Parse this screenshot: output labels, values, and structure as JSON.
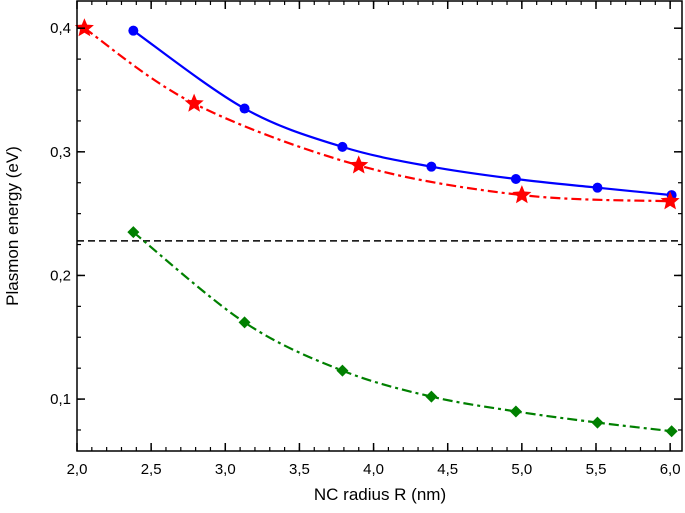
{
  "chart_data": {
    "type": "line",
    "title": "",
    "xlabel": "NC radius R (nm)",
    "ylabel": "Plasmon energy (eV)",
    "xlim": [
      2.0,
      6.08
    ],
    "ylim": [
      0.058,
      0.422
    ],
    "xticks": [
      "2,0",
      "2,5",
      "3,0",
      "3,5",
      "4,0",
      "4,5",
      "5,0",
      "5,5",
      "6,0"
    ],
    "xtick_values": [
      2.0,
      2.5,
      3.0,
      3.5,
      4.0,
      4.5,
      5.0,
      5.5,
      6.0
    ],
    "yticks": [
      "0,1",
      "0,2",
      "0,3",
      "0,4"
    ],
    "ytick_values": [
      0.1,
      0.2,
      0.3,
      0.4
    ],
    "grid": false,
    "series": [
      {
        "color": "#0000ff",
        "marker": "circle",
        "line": "solid",
        "x": [
          2.38,
          3.13,
          3.79,
          4.39,
          4.96,
          5.51,
          6.01
        ],
        "y": [
          0.398,
          0.335,
          0.304,
          0.288,
          0.278,
          0.271,
          0.265
        ]
      },
      {
        "color": "#ff0000",
        "marker": "star",
        "line": "dash-dot",
        "x": [
          2.05,
          2.79,
          3.9,
          5.0,
          6.0
        ],
        "y": [
          0.4,
          0.339,
          0.289,
          0.265,
          0.26
        ]
      },
      {
        "color": "#008000",
        "marker": "diamond",
        "line": "dash-dot",
        "x": [
          2.38,
          3.13,
          3.79,
          4.39,
          4.96,
          5.51,
          6.01
        ],
        "y": [
          0.235,
          0.162,
          0.123,
          0.102,
          0.09,
          0.081,
          0.074
        ]
      }
    ],
    "reference_line": {
      "y": 0.228,
      "color": "#000000",
      "line": "dashed"
    }
  }
}
